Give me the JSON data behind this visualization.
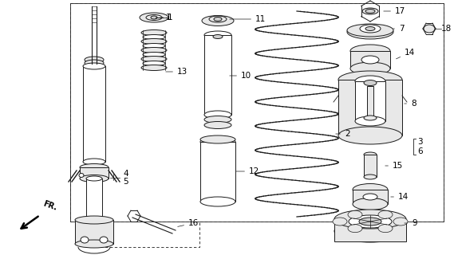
{
  "bg_color": "#ffffff",
  "line_color": "#1a1a1a",
  "lw": 0.7,
  "fig_w": 5.69,
  "fig_h": 3.2,
  "dpi": 100
}
